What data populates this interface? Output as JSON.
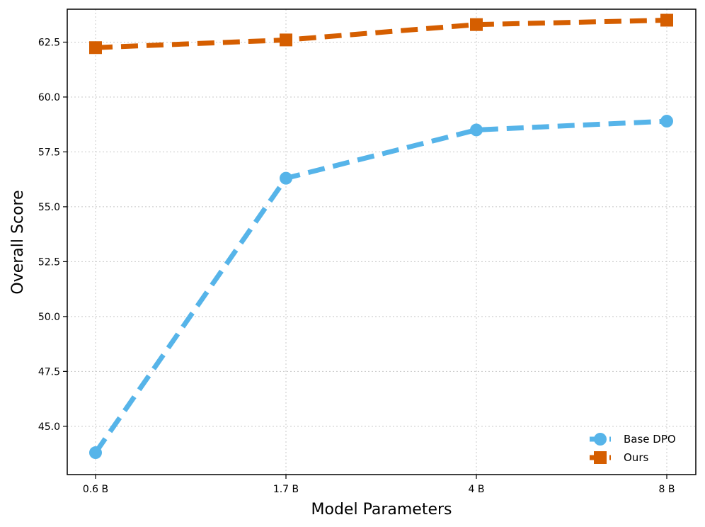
{
  "chart_data": {
    "type": "line",
    "categories": [
      "0.6 B",
      "1.7 B",
      "4 B",
      "8 B"
    ],
    "series": [
      {
        "name": "Base DPO",
        "values": [
          43.8,
          56.3,
          58.5,
          58.9
        ],
        "color": "#56B4E9",
        "marker": "circle",
        "line_style": "dashed"
      },
      {
        "name": "Ours",
        "values": [
          62.25,
          62.6,
          63.3,
          63.5
        ],
        "color": "#D55E00",
        "marker": "square",
        "line_style": "dashed"
      }
    ],
    "xlabel": "Model Parameters",
    "ylabel": "Overall Score",
    "ylim": [
      42.8,
      64.0
    ],
    "yticks": [
      "45.0",
      "47.5",
      "50.0",
      "52.5",
      "55.0",
      "57.5",
      "60.0",
      "62.5"
    ],
    "grid": true,
    "legend_position": "lower-right"
  }
}
